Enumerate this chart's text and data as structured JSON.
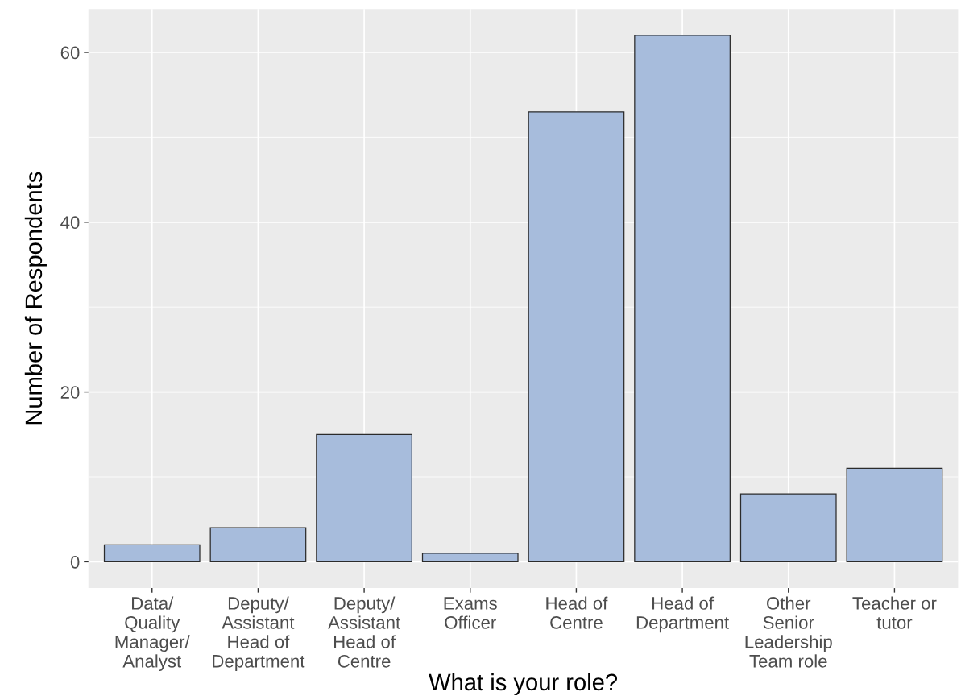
{
  "chart_data": {
    "type": "bar",
    "xlabel": "What is your role?",
    "ylabel": "Number of Respondents",
    "categories": [
      "Data/\nQuality\nManager/\nAnalyst",
      "Deputy/\nAssistant\nHead of\nDepartment",
      "Deputy/\nAssistant\nHead of\nCentre",
      "Exams\nOfficer",
      "Head of\nCentre",
      "Head of\nDepartment",
      "Other\nSenior\nLeadership\nTeam role",
      "Teacher or\ntutor"
    ],
    "values": [
      2,
      4,
      15,
      1,
      53,
      62,
      8,
      11
    ],
    "color": "#a7bcdc",
    "ylim": [
      -3.1,
      65.1
    ],
    "yticks": [
      0,
      20,
      40,
      60
    ],
    "grid": true
  }
}
